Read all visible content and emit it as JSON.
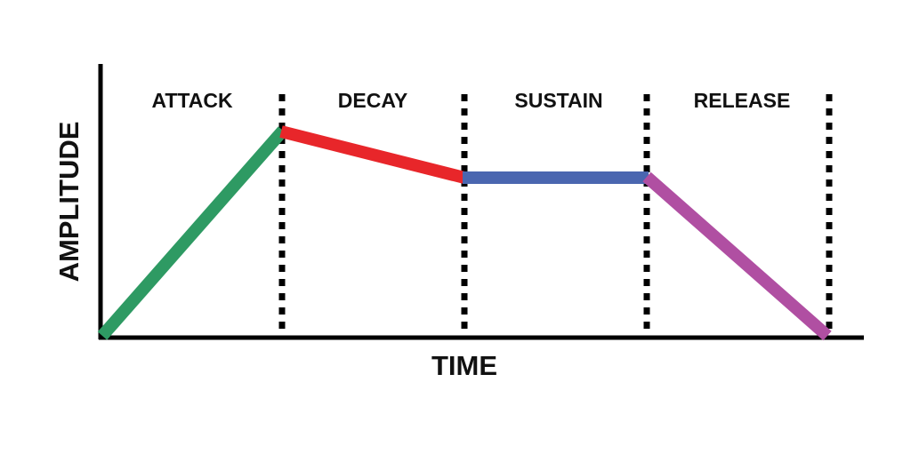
{
  "phases": [
    {
      "label": "ATTACK"
    },
    {
      "label": "DECAY"
    },
    {
      "label": "SUSTAIN"
    },
    {
      "label": "RELEASE"
    }
  ],
  "x_axis": {
    "label": "TIME"
  },
  "y_axis": {
    "label": "AMPLITUDE"
  }
}
